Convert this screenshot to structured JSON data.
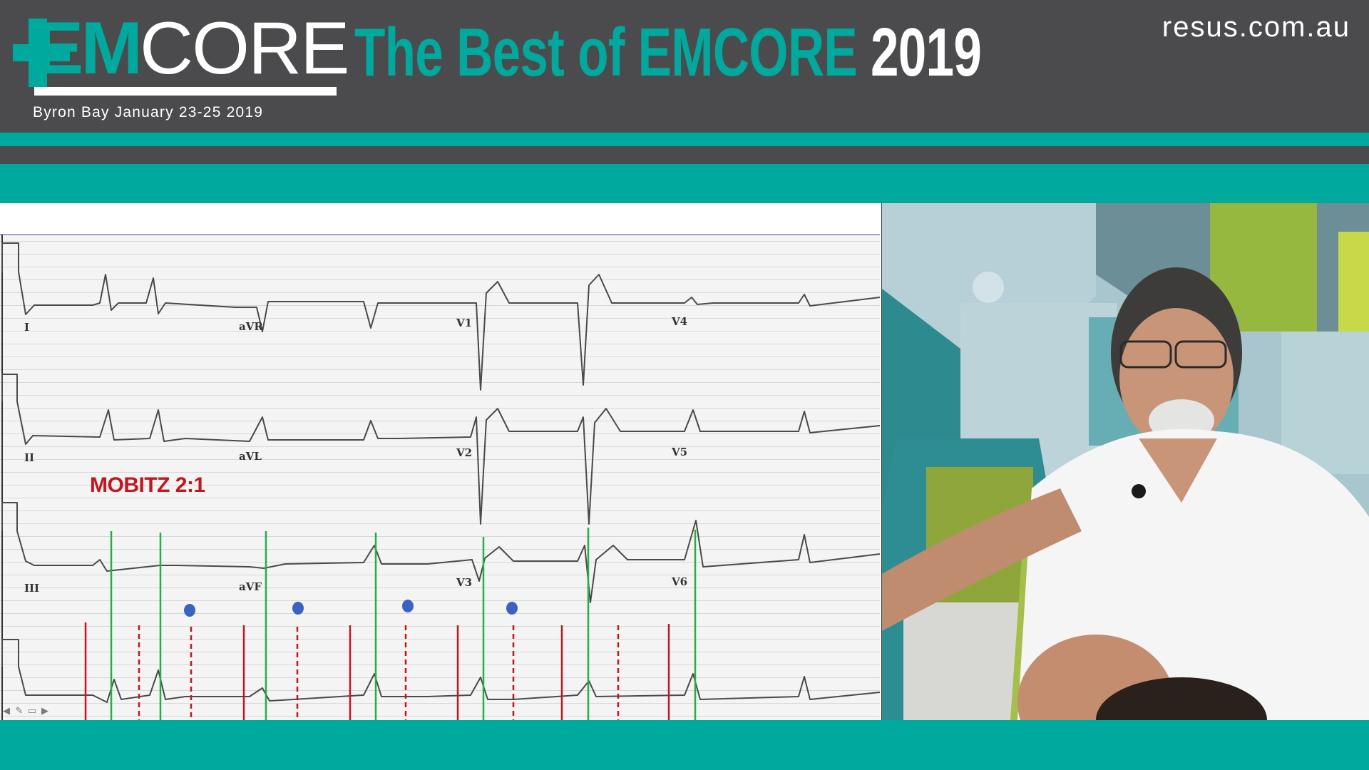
{
  "header": {
    "logo_em": "EM",
    "logo_core": "CORE",
    "headline_part1": "The Best of EMCORE",
    "headline_part2": "2019",
    "site": "resus.com.au",
    "event": "Byron Bay January 23-25 2019"
  },
  "slide": {
    "annotation": "MOBITZ 2:1",
    "lead_labels": [
      "I",
      "aVR",
      "V1",
      "V4",
      "II",
      "aVL",
      "V2",
      "V5",
      "III",
      "aVF",
      "V3",
      "V6"
    ]
  },
  "colors": {
    "teal": "#00a99d",
    "header_gray": "#4b4b4d",
    "annotation_red": "#c4161c",
    "p_wave_marker": "#3a62c2",
    "qrs_marker": "#22b04b"
  },
  "icons": [
    "prev-slide-icon",
    "pen-icon",
    "slides-icon",
    "next-slide-icon"
  ]
}
